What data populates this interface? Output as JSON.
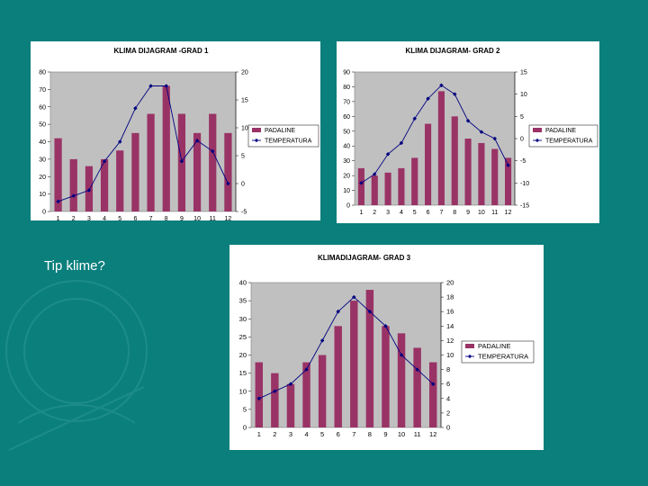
{
  "caption": "Tip klime?",
  "colors": {
    "background": "#0b7f7c",
    "plot_area": "#c0c0c0",
    "bar": "#993366",
    "line": "#000080"
  },
  "chart_data": [
    {
      "type": "bar",
      "title": "KLIMA DIJAGRAM -GRAD 1",
      "categories": [
        "1",
        "2",
        "3",
        "4",
        "5",
        "6",
        "7",
        "8",
        "9",
        "10",
        "11",
        "12"
      ],
      "series": [
        {
          "name": "PADALINE",
          "type": "bar",
          "axis": "left",
          "values": [
            42,
            30,
            26,
            30,
            35,
            45,
            56,
            72,
            56,
            45,
            56,
            45
          ]
        },
        {
          "name": "TEMPERATURA",
          "type": "line",
          "axis": "right",
          "values": [
            -3.2,
            -2.2,
            -1.2,
            4,
            7.5,
            13.5,
            17.5,
            17.5,
            4,
            7.7,
            5.8,
            0
          ]
        }
      ],
      "ylim_left": [
        0,
        80
      ],
      "yticks_left": [
        "0",
        "10",
        "20",
        "30",
        "40",
        "50",
        "60",
        "70",
        "80"
      ],
      "ylim_right": [
        -5,
        20
      ],
      "yticks_right": [
        "-5",
        "0",
        "5",
        "10",
        "15",
        "20"
      ],
      "legend": "right"
    },
    {
      "type": "bar",
      "title": "KLIMA DIJAGRAM- GRAD 2",
      "categories": [
        "1",
        "2",
        "3",
        "4",
        "5",
        "6",
        "7",
        "8",
        "9",
        "10",
        "11",
        "12"
      ],
      "series": [
        {
          "name": "PADALINE",
          "type": "bar",
          "axis": "left",
          "values": [
            25,
            20,
            22,
            25,
            32,
            55,
            77,
            60,
            45,
            42,
            38,
            32
          ]
        },
        {
          "name": "TEMPERATURA",
          "type": "line",
          "axis": "right",
          "values": [
            -10,
            -8,
            -3.5,
            -1,
            4.5,
            9,
            12,
            10,
            4,
            1.5,
            0,
            -6
          ]
        }
      ],
      "ylim_left": [
        0,
        90
      ],
      "yticks_left": [
        "0",
        "10",
        "20",
        "30",
        "40",
        "50",
        "60",
        "70",
        "80",
        "90"
      ],
      "ylim_right": [
        -15,
        15
      ],
      "yticks_right": [
        "-15",
        "-10",
        "-5",
        "0",
        "5",
        "10",
        "15"
      ],
      "legend": "right"
    },
    {
      "type": "bar",
      "title": "KLIMADIJAGRAM- GRAD 3",
      "categories": [
        "1",
        "2",
        "3",
        "4",
        "5",
        "6",
        "7",
        "8",
        "9",
        "10",
        "11",
        "12"
      ],
      "series": [
        {
          "name": "PADALINE",
          "type": "bar",
          "axis": "left",
          "values": [
            18,
            15,
            12,
            18,
            20,
            28,
            35,
            38,
            28,
            26,
            22,
            18
          ]
        },
        {
          "name": "TEMPERATURA",
          "type": "line",
          "axis": "right",
          "values": [
            4,
            5,
            6,
            8,
            12,
            16,
            18,
            16,
            14,
            10,
            8,
            6
          ]
        }
      ],
      "ylim_left": [
        0,
        40
      ],
      "yticks_left": [
        "0",
        "5",
        "10",
        "15",
        "20",
        "25",
        "30",
        "35",
        "40"
      ],
      "ylim_right": [
        0,
        20
      ],
      "yticks_right": [
        "0",
        "2",
        "4",
        "6",
        "8",
        "10",
        "12",
        "14",
        "16",
        "18",
        "20"
      ],
      "legend": "right"
    }
  ]
}
